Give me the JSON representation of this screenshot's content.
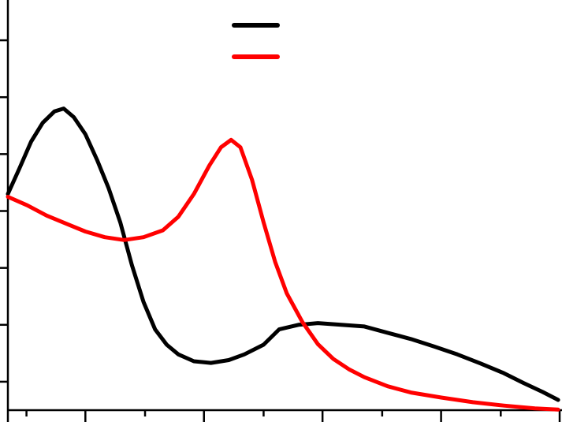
{
  "chart_data": {
    "type": "line",
    "title": "",
    "xlabel": "",
    "ylabel": "",
    "xlim": [
      0,
      713
    ],
    "ylim": [
      0,
      7
    ],
    "grid": false,
    "legend": "top-center",
    "x_major_ticks": [
      100,
      253,
      406,
      559,
      712
    ],
    "x_minor_ticks": [
      24,
      177,
      330,
      483,
      636
    ],
    "y_ticks": [
      0.5,
      1.5,
      2.5,
      3.5,
      4.5,
      5.5,
      6.5
    ],
    "colors": {
      "black_series": "#000000",
      "red_series": "#ff0000",
      "axis": "#000000"
    },
    "series": [
      {
        "color": "#000000",
        "x": [
          0,
          15,
          30,
          45,
          60,
          72,
          85,
          100,
          115,
          130,
          145,
          160,
          175,
          190,
          205,
          220,
          240,
          262,
          285,
          305,
          330,
          350,
          375,
          400,
          430,
          460,
          490,
          520,
          550,
          580,
          610,
          640,
          665,
          690,
          710
        ],
        "y": [
          3.8,
          4.25,
          4.72,
          5.05,
          5.25,
          5.3,
          5.15,
          4.85,
          4.4,
          3.9,
          3.3,
          2.55,
          1.9,
          1.42,
          1.15,
          0.98,
          0.86,
          0.83,
          0.88,
          0.98,
          1.15,
          1.42,
          1.5,
          1.53,
          1.5,
          1.47,
          1.36,
          1.25,
          1.12,
          0.98,
          0.82,
          0.65,
          0.48,
          0.32,
          0.18
        ]
      },
      {
        "color": "#ff0000",
        "x": [
          0,
          25,
          50,
          75,
          100,
          125,
          150,
          175,
          200,
          220,
          240,
          260,
          275,
          288,
          300,
          315,
          330,
          345,
          360,
          380,
          400,
          420,
          440,
          460,
          490,
          520,
          560,
          600,
          640,
          680,
          710
        ],
        "y": [
          3.75,
          3.6,
          3.42,
          3.28,
          3.14,
          3.04,
          2.99,
          3.04,
          3.16,
          3.4,
          3.8,
          4.3,
          4.62,
          4.75,
          4.62,
          4.05,
          3.3,
          2.6,
          2.05,
          1.55,
          1.16,
          0.9,
          0.72,
          0.58,
          0.42,
          0.31,
          0.22,
          0.14,
          0.08,
          0.03,
          0.01
        ]
      }
    ]
  }
}
